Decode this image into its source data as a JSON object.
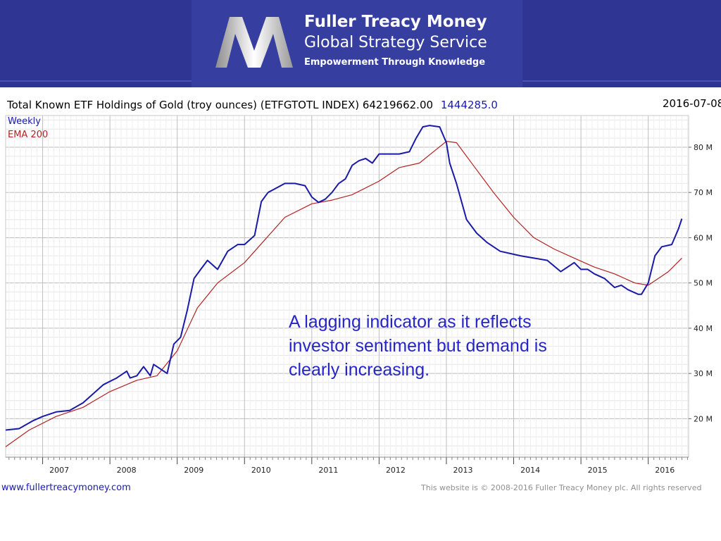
{
  "header": {
    "brand_title": "Fuller Treacy Money",
    "brand_subtitle": "Global Strategy Service",
    "tagline": "Empowerment Through Knowledge",
    "logo_icon": "fuller-treacy-m-logo"
  },
  "colors": {
    "banner": "#2e3592",
    "weekly_line": "#1a1aa8",
    "ema_line": "#b22222",
    "annotation": "#2525c8"
  },
  "chart_data": {
    "type": "line",
    "title": "Total Known ETF Holdings of Gold (troy ounces) (ETFGTOTL INDEX) 64219662.00",
    "change_value": "1444285.0",
    "date": "2016-07-08",
    "ylim": [
      11.5,
      87
    ],
    "y_unit": "M",
    "y_ticks": [
      20,
      30,
      40,
      50,
      60,
      70,
      80
    ],
    "y_tick_labels": [
      "20 M",
      "30 M",
      "40 M",
      "50 M",
      "60 M",
      "70 M",
      "80 M"
    ],
    "xlim": [
      2006.45,
      2016.6
    ],
    "x_ticks": [
      2007,
      2008,
      2009,
      2010,
      2011,
      2012,
      2013,
      2014,
      2015,
      2016
    ],
    "x_tick_labels": [
      "2007",
      "2008",
      "2009",
      "2010",
      "2011",
      "2012",
      "2013",
      "2014",
      "2015",
      "2016"
    ],
    "grid": true,
    "legend_position": "top-left",
    "series": [
      {
        "name": "Weekly",
        "color": "#1a1aa8",
        "x": [
          2006.45,
          2006.65,
          2006.85,
          2007.0,
          2007.2,
          2007.4,
          2007.6,
          2007.75,
          2007.9,
          2008.1,
          2008.25,
          2008.3,
          2008.4,
          2008.5,
          2008.6,
          2008.65,
          2008.75,
          2008.85,
          2008.95,
          2009.05,
          2009.15,
          2009.25,
          2009.35,
          2009.45,
          2009.6,
          2009.75,
          2009.9,
          2010.0,
          2010.15,
          2010.25,
          2010.35,
          2010.45,
          2010.6,
          2010.75,
          2010.9,
          2011.0,
          2011.1,
          2011.2,
          2011.3,
          2011.4,
          2011.5,
          2011.6,
          2011.7,
          2011.8,
          2011.9,
          2012.0,
          2012.15,
          2012.3,
          2012.45,
          2012.55,
          2012.65,
          2012.75,
          2012.9,
          2013.0,
          2013.05,
          2013.15,
          2013.3,
          2013.45,
          2013.6,
          2013.8,
          2013.95,
          2014.1,
          2014.3,
          2014.5,
          2014.7,
          2014.9,
          2015.0,
          2015.1,
          2015.2,
          2015.35,
          2015.5,
          2015.6,
          2015.7,
          2015.85,
          2015.9,
          2016.0,
          2016.1,
          2016.2,
          2016.35,
          2016.45,
          2016.5
        ],
        "values": [
          17.5,
          17.8,
          19.5,
          20.5,
          21.5,
          21.8,
          23.5,
          25.5,
          27.5,
          29,
          30.5,
          29,
          29.5,
          31.5,
          29.5,
          32,
          31,
          30,
          36.5,
          38,
          44,
          51,
          53,
          55,
          53,
          57,
          58.5,
          58.5,
          60.5,
          68,
          70,
          70.8,
          72,
          72,
          71.5,
          69,
          67.8,
          68.5,
          70,
          72,
          73,
          76,
          77,
          77.5,
          76.5,
          78.5,
          78.5,
          78.5,
          79,
          82,
          84.5,
          84.8,
          84.5,
          81,
          76.5,
          72,
          64,
          61,
          59,
          57,
          56.5,
          56,
          55.5,
          55,
          52.5,
          54.5,
          53,
          53,
          52,
          51,
          49,
          49.5,
          48.5,
          47.5,
          47.5,
          50,
          56,
          58,
          58.5,
          62,
          64.2
        ]
      },
      {
        "name": "EMA 200",
        "color": "#b22222",
        "x": [
          2006.45,
          2006.8,
          2007.2,
          2007.6,
          2008.0,
          2008.4,
          2008.7,
          2009.0,
          2009.3,
          2009.6,
          2010.0,
          2010.3,
          2010.6,
          2011.0,
          2011.3,
          2011.6,
          2012.0,
          2012.3,
          2012.6,
          2012.85,
          2013.0,
          2013.15,
          2013.4,
          2013.7,
          2014.0,
          2014.3,
          2014.6,
          2014.9,
          2015.2,
          2015.5,
          2015.8,
          2016.0,
          2016.3,
          2016.5
        ],
        "values": [
          13.8,
          17.5,
          20.5,
          22.5,
          26,
          28.5,
          29.5,
          35,
          44.5,
          50,
          54.5,
          59.5,
          64.5,
          67.5,
          68.3,
          69.5,
          72.5,
          75.5,
          76.5,
          79.5,
          81.3,
          81,
          76,
          70,
          64.5,
          60,
          57.5,
          55.5,
          53.5,
          52,
          50,
          49.5,
          52.5,
          55.5
        ]
      }
    ],
    "annotation": "A lagging indicator as it reflects investor sentiment but demand is clearly increasing."
  },
  "footer": {
    "website": "www.fullertreacymoney.com",
    "copyright": "This website is © 2008-2016 Fuller Treacy Money plc. All rights reserved"
  }
}
